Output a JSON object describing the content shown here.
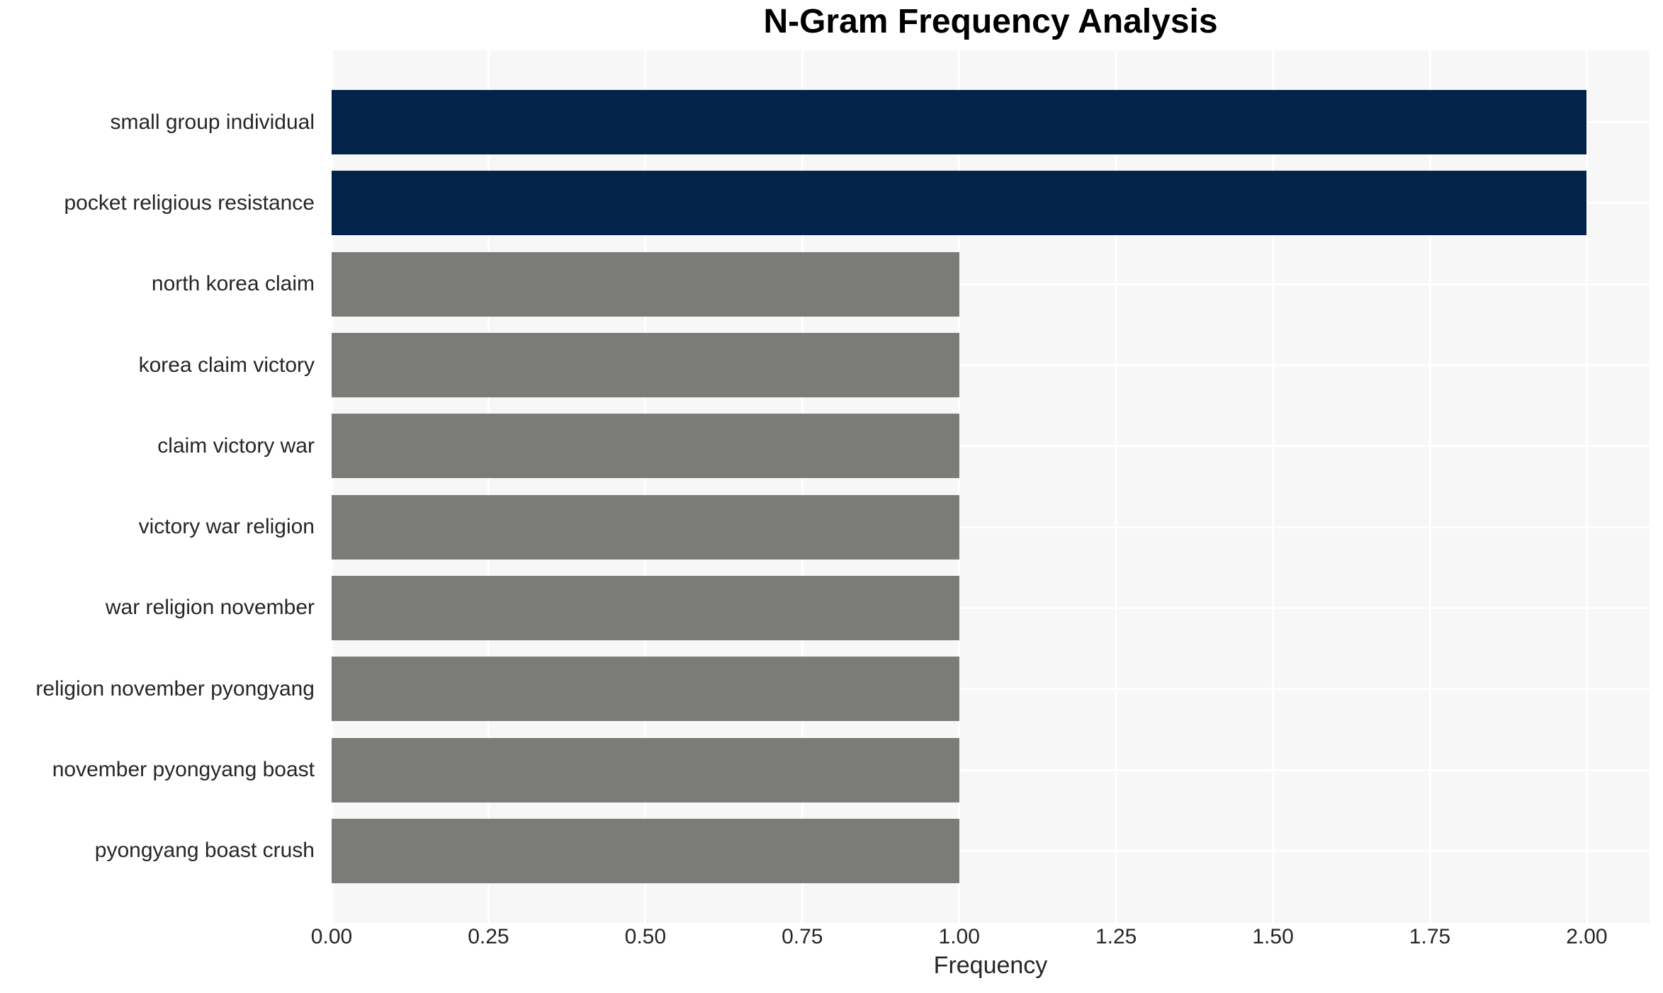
{
  "page": {
    "background_color": "#ffffff"
  },
  "chart_data": {
    "type": "bar",
    "orientation": "horizontal",
    "title": "N-Gram Frequency Analysis",
    "xlabel": "Frequency",
    "ylabel": "",
    "categories": [
      "small group individual",
      "pocket religious resistance",
      "north korea claim",
      "korea claim victory",
      "claim victory war",
      "victory war religion",
      "war religion november",
      "religion november pyongyang",
      "november pyongyang boast",
      "pyongyang boast crush"
    ],
    "values": [
      2,
      2,
      1,
      1,
      1,
      1,
      1,
      1,
      1,
      1
    ],
    "bar_colors": [
      "#04234b",
      "#04234b",
      "#7b7b77",
      "#7b7b77",
      "#7b7b77",
      "#7b7b77",
      "#7b7b77",
      "#7b7b77",
      "#7b7b77",
      "#7b7b77"
    ],
    "x_tick_labels": [
      "0.00",
      "0.25",
      "0.50",
      "0.75",
      "1.00",
      "1.25",
      "1.50",
      "1.75",
      "2.00"
    ],
    "x_tick_values": [
      0,
      0.25,
      0.5,
      0.75,
      1.0,
      1.25,
      1.5,
      1.75,
      2.0
    ],
    "xlim": [
      0,
      2.1
    ],
    "grid": true,
    "grid_color": "#ffffff",
    "legend_position": "none",
    "colors": {
      "highlight_bar": "#04234b",
      "default_bar": "#7b7b77",
      "plot_background": "#f7f7f7",
      "gridline": "#ffffff",
      "tick_text": "#262626",
      "title_text": "#000000"
    }
  }
}
